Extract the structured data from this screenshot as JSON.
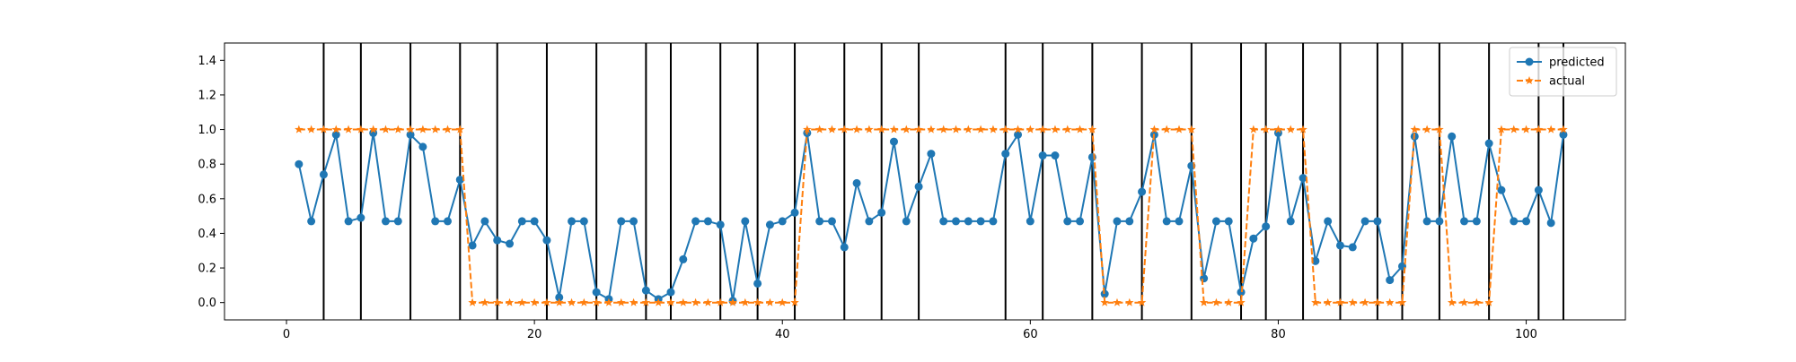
{
  "chart_data": {
    "type": "line",
    "xlim": [
      -5,
      108
    ],
    "ylim": [
      -0.1,
      1.5
    ],
    "x_ticks": [
      0,
      20,
      40,
      60,
      80,
      100
    ],
    "y_ticks": [
      0.0,
      0.2,
      0.4,
      0.6,
      0.8,
      1.0,
      1.2,
      1.4
    ],
    "x_tick_labels": [
      "0",
      "20",
      "40",
      "60",
      "80",
      "100"
    ],
    "y_tick_labels": [
      "0.0",
      "0.2",
      "0.4",
      "0.6",
      "0.8",
      "1.0",
      "1.2",
      "1.4"
    ],
    "vertical_lines": [
      3,
      6,
      10,
      14,
      17,
      21,
      25,
      29,
      31,
      35,
      38,
      41,
      45,
      48,
      51,
      58,
      61,
      65,
      69,
      73,
      77,
      79,
      82,
      85,
      88,
      90,
      93,
      97,
      101,
      103
    ],
    "legend_position": "top-right",
    "x": [
      1,
      2,
      3,
      4,
      5,
      6,
      7,
      8,
      9,
      10,
      11,
      12,
      13,
      14,
      15,
      16,
      17,
      18,
      19,
      20,
      21,
      22,
      23,
      24,
      25,
      26,
      27,
      28,
      29,
      30,
      31,
      32,
      33,
      34,
      35,
      36,
      37,
      38,
      39,
      40,
      41,
      42,
      43,
      44,
      45,
      46,
      47,
      48,
      49,
      50,
      51,
      52,
      53,
      54,
      55,
      56,
      57,
      58,
      59,
      60,
      61,
      62,
      63,
      64,
      65,
      66,
      67,
      68,
      69,
      70,
      71,
      72,
      73,
      74,
      75,
      76,
      77,
      78,
      79,
      80,
      81,
      82,
      83,
      84,
      85,
      86,
      87,
      88,
      89,
      90,
      91,
      92,
      93,
      94,
      95,
      96,
      97,
      98,
      99,
      100,
      101,
      102,
      103
    ],
    "series": [
      {
        "name": "predicted",
        "color": "#1f77b4",
        "marker": "circle",
        "linestyle": "solid",
        "values": [
          0.8,
          0.47,
          0.74,
          0.97,
          0.47,
          0.49,
          0.98,
          0.47,
          0.47,
          0.97,
          0.9,
          0.47,
          0.47,
          0.71,
          0.33,
          0.47,
          0.36,
          0.34,
          0.47,
          0.47,
          0.36,
          0.03,
          0.47,
          0.47,
          0.06,
          0.02,
          0.47,
          0.47,
          0.07,
          0.02,
          0.06,
          0.25,
          0.47,
          0.47,
          0.45,
          0.01,
          0.47,
          0.11,
          0.45,
          0.47,
          0.52,
          0.98,
          0.47,
          0.47,
          0.32,
          0.69,
          0.47,
          0.52,
          0.93,
          0.47,
          0.67,
          0.86,
          0.47,
          0.47,
          0.47,
          0.47,
          0.47,
          0.86,
          0.97,
          0.47,
          0.85,
          0.85,
          0.47,
          0.47,
          0.84,
          0.05,
          0.47,
          0.47,
          0.64,
          0.97,
          0.47,
          0.47,
          0.79,
          0.14,
          0.47,
          0.47,
          0.06,
          0.37,
          0.44,
          0.98,
          0.47,
          0.72,
          0.24,
          0.47,
          0.33,
          0.32,
          0.47,
          0.47,
          0.13,
          0.21,
          0.96,
          0.47,
          0.47,
          0.96,
          0.47,
          0.47,
          0.92,
          0.65,
          0.47,
          0.47,
          0.65,
          0.46,
          0.97
        ]
      },
      {
        "name": "actual",
        "color": "#ff7f0e",
        "marker": "star",
        "linestyle": "dashed",
        "values": [
          1,
          1,
          1,
          1,
          1,
          1,
          1,
          1,
          1,
          1,
          1,
          1,
          1,
          1,
          0,
          0,
          0,
          0,
          0,
          0,
          0,
          0,
          0,
          0,
          0,
          0,
          0,
          0,
          0,
          0,
          0,
          0,
          0,
          0,
          0,
          0,
          0,
          0,
          0,
          0,
          0,
          1,
          1,
          1,
          1,
          1,
          1,
          1,
          1,
          1,
          1,
          1,
          1,
          1,
          1,
          1,
          1,
          1,
          1,
          1,
          1,
          1,
          1,
          1,
          1,
          0,
          0,
          0,
          0,
          1,
          1,
          1,
          1,
          0,
          0,
          0,
          0,
          1,
          1,
          1,
          1,
          1,
          0,
          0,
          0,
          0,
          0,
          0,
          0,
          0,
          1,
          1,
          1,
          0,
          0,
          0,
          0,
          1,
          1,
          1,
          1,
          1,
          1
        ]
      }
    ]
  }
}
